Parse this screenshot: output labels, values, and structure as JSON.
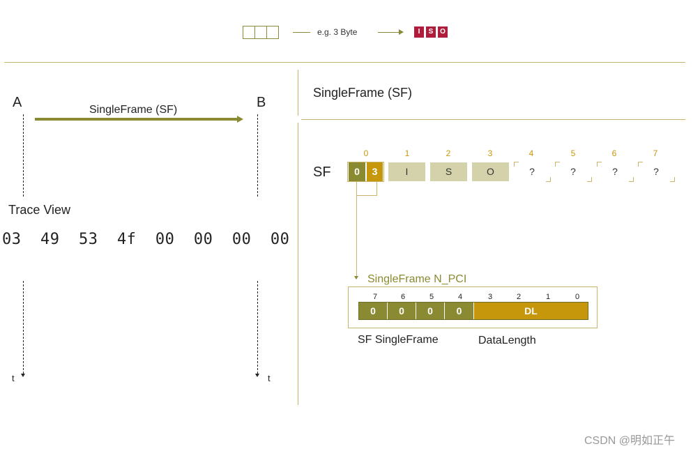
{
  "legend": {
    "example_text": "e.g. 3 Byte",
    "iso_letters": [
      "I",
      "S",
      "O"
    ]
  },
  "left": {
    "node_a": "A",
    "node_b": "B",
    "arrow_label": "SingleFrame (SF)",
    "trace_title": "Trace View",
    "trace_bytes": "03  49  53  4f  00  00  00  00",
    "time_label_left": "t",
    "time_label_right": "t"
  },
  "right": {
    "title": "SingleFrame (SF)",
    "frame_label": "SF",
    "byte_indices": [
      "0",
      "1",
      "2",
      "3",
      "4",
      "5",
      "6",
      "7"
    ],
    "pci_nibbles": [
      "0",
      "3"
    ],
    "data_bytes": [
      "I",
      "S",
      "O"
    ],
    "unknown_bytes": [
      "?",
      "?",
      "?",
      "?"
    ],
    "npci_title": "SingleFrame N_PCI",
    "bit_numbers": [
      "7",
      "6",
      "5",
      "4",
      "3",
      "2",
      "1",
      "0"
    ],
    "type_bits": [
      "0",
      "0",
      "0",
      "0"
    ],
    "dl_label": "DL",
    "caption_type": "SF SingleFrame",
    "caption_dl": "DataLength"
  },
  "watermark": "CSDN @明如正午",
  "colors": {
    "olive": "#8a8a32",
    "gold": "#c7970b",
    "iso_red": "#b01c3c",
    "line": "#c9b46a"
  }
}
